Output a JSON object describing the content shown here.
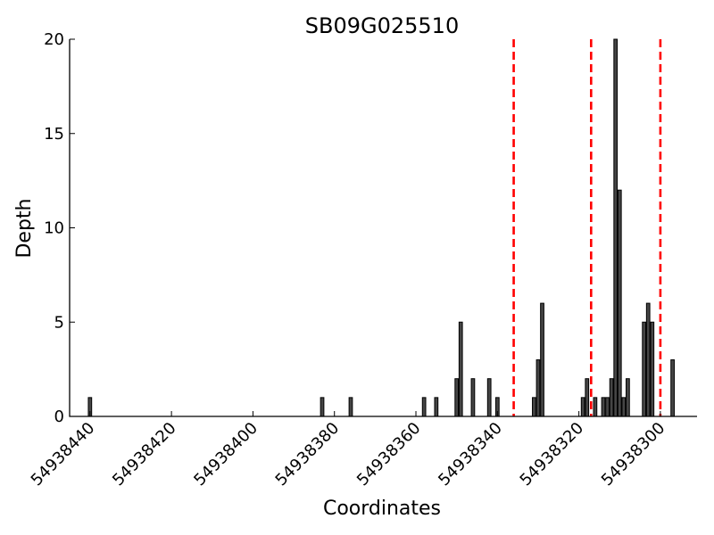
{
  "chart_data": {
    "type": "bar",
    "title": "SB09G025510",
    "xlabel": "Coordinates",
    "ylabel": "Depth",
    "x_reversed": true,
    "xlim": [
      54938445,
      54938291
    ],
    "ylim": [
      0,
      20
    ],
    "xticks": [
      54938440,
      54938420,
      54938400,
      54938380,
      54938360,
      54938340,
      54938320,
      54938300
    ],
    "yticks": [
      0,
      5,
      10,
      15,
      20
    ],
    "grid": false,
    "bar_color": "#454545",
    "marker_color": "#ff0000",
    "markers_x": [
      54938336,
      54938317,
      54938300
    ],
    "bars": [
      {
        "x": 54938440,
        "y": 1
      },
      {
        "x": 54938383,
        "y": 1
      },
      {
        "x": 54938376,
        "y": 1
      },
      {
        "x": 54938358,
        "y": 1
      },
      {
        "x": 54938355,
        "y": 1
      },
      {
        "x": 54938350,
        "y": 2
      },
      {
        "x": 54938349,
        "y": 5
      },
      {
        "x": 54938346,
        "y": 2
      },
      {
        "x": 54938342,
        "y": 2
      },
      {
        "x": 54938340,
        "y": 1
      },
      {
        "x": 54938331,
        "y": 1
      },
      {
        "x": 54938330,
        "y": 3
      },
      {
        "x": 54938329,
        "y": 6
      },
      {
        "x": 54938319,
        "y": 1
      },
      {
        "x": 54938318,
        "y": 2
      },
      {
        "x": 54938316,
        "y": 1
      },
      {
        "x": 54938314,
        "y": 1
      },
      {
        "x": 54938313,
        "y": 1
      },
      {
        "x": 54938312,
        "y": 2
      },
      {
        "x": 54938311,
        "y": 20
      },
      {
        "x": 54938310,
        "y": 12
      },
      {
        "x": 54938309,
        "y": 1
      },
      {
        "x": 54938308,
        "y": 2
      },
      {
        "x": 54938304,
        "y": 5
      },
      {
        "x": 54938303,
        "y": 6
      },
      {
        "x": 54938302,
        "y": 5
      },
      {
        "x": 54938297,
        "y": 3
      }
    ]
  }
}
